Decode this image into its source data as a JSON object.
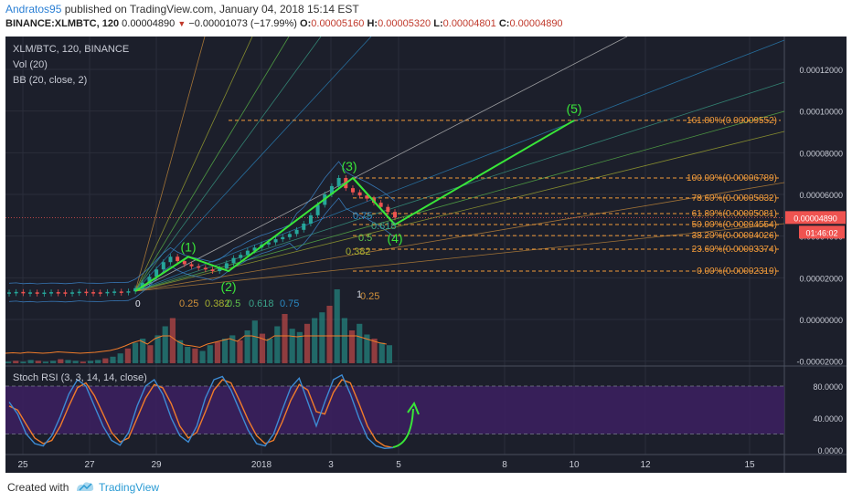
{
  "header": {
    "author": "Andratos95",
    "published": "published on TradingView.com, January 04, 2018 15:14 EST",
    "symbol": "BINANCE:XLMBTC, 120",
    "last": "0.00004890",
    "change": "−0.00001073 (−17.99%)",
    "o_label": "O:",
    "o": "0.00005160",
    "h_label": "H:",
    "h": "0.00005320",
    "l_label": "L:",
    "l": "0.00004801",
    "c_label": "C:",
    "c": "0.00004890"
  },
  "legend": {
    "pair": "XLM/BTC, 120, BINANCE",
    "vol": "Vol (20)",
    "bb": "BB (20, close, 2)",
    "stoch": "Stoch RSI (3, 3, 14, 14, close)"
  },
  "footer": {
    "created": "Created with",
    "brand": "TradingView"
  },
  "colors": {
    "bg": "#1c1f2b",
    "up": "#26a69a",
    "down": "#ef5350",
    "wave": "#39e639",
    "fib": "#f29b3a",
    "rsi_band": "#3b1f5e",
    "k": "#3d8bd4",
    "d": "#f07c2a"
  },
  "chart_data": {
    "type": "line",
    "price_axis": {
      "ticks": [
        "0.00012000",
        "0.00010000",
        "0.00008000",
        "0.00006000",
        "0.00004000",
        "0.00002000",
        "0.00000000",
        "-0.00002000"
      ],
      "current_price": "0.00004890",
      "countdown": "01:46:02",
      "ylim": [
        -2e-05,
        0.00013
      ]
    },
    "time_axis": {
      "ticks": [
        "25",
        "27",
        "29",
        "2018",
        "3",
        "5",
        "8",
        "10",
        "12",
        "15"
      ]
    },
    "elliott_wave": {
      "labels": [
        "(1)",
        "(2)",
        "(3)",
        "(4)",
        "(5)"
      ],
      "values": [
        3.01e-05,
        2.32e-05,
        6.79e-05,
        4.55e-05,
        9.55e-05
      ]
    },
    "fib_retracement": [
      {
        "label": "161.80%(0.00009552)",
        "value": 9.552e-05
      },
      {
        "label": "100.00%(0.00006789)",
        "value": 6.789e-05
      },
      {
        "label": "78.60%(0.00005832)",
        "value": 5.832e-05
      },
      {
        "label": "61.80%(0.00005081)",
        "value": 5.081e-05
      },
      {
        "label": "50.00%(0.00004554)",
        "value": 4.554e-05
      },
      {
        "label": "38.20%(0.00004026)",
        "value": 4.026e-05
      },
      {
        "label": "23.60%(0.00003374)",
        "value": 3.374e-05
      },
      {
        "label": "0.00%(0.00002319)",
        "value": 2.319e-05
      }
    ],
    "gann_fan_labels": [
      "0",
      "0.25",
      "0.382",
      "0.5",
      "0.618",
      "0.75",
      "1",
      "0.25",
      "0.382",
      "0.5",
      "0.618",
      "0.75",
      "0"
    ],
    "stoch_rsi": {
      "ticks": [
        "80.0000",
        "40.0000",
        "0.0000"
      ],
      "upper_band": 80,
      "lower_band": 20
    },
    "price_series": [
      1.3e-05,
      1.32e-05,
      1.28e-05,
      1.3e-05,
      1.27e-05,
      1.29e-05,
      1.31e-05,
      1.3e-05,
      1.28e-05,
      1.3e-05,
      1.33e-05,
      1.31e-05,
      1.3e-05,
      1.29e-05,
      1.32e-05,
      1.34e-05,
      1.33e-05,
      1.35e-05,
      1.5e-05,
      1.75e-05,
      2.05e-05,
      2.4e-05,
      2.75e-05,
      3.01e-05,
      2.8e-05,
      2.65e-05,
      2.55e-05,
      2.48e-05,
      2.4e-05,
      2.32e-05,
      2.45e-05,
      2.7e-05,
      2.95e-05,
      3.1e-05,
      3.3e-05,
      3.45e-05,
      3.6e-05,
      3.7e-05,
      3.85e-05,
      3.95e-05,
      4.1e-05,
      4.3e-05,
      4.6e-05,
      5e-05,
      5.5e-05,
      6e-05,
      6.4e-05,
      6.79e-05,
      6.3e-05,
      6.1e-05,
      5.95e-05,
      5.8e-05,
      5.6e-05,
      5.4e-05,
      5.16e-05,
      4.89e-05
    ],
    "rsi_k": [
      60,
      45,
      20,
      8,
      5,
      18,
      42,
      70,
      88,
      80,
      55,
      30,
      12,
      6,
      22,
      55,
      80,
      88,
      70,
      40,
      18,
      10,
      30,
      65,
      88,
      92,
      75,
      50,
      25,
      8,
      5,
      20,
      50,
      78,
      90,
      60,
      30,
      60,
      88,
      94,
      70,
      40,
      15,
      5,
      2,
      3
    ],
    "rsi_d": [
      55,
      50,
      32,
      15,
      8,
      12,
      30,
      55,
      78,
      84,
      68,
      45,
      22,
      10,
      15,
      40,
      65,
      82,
      78,
      58,
      30,
      15,
      22,
      48,
      75,
      88,
      84,
      62,
      38,
      18,
      8,
      12,
      35,
      62,
      82,
      75,
      48,
      45,
      72,
      88,
      84,
      58,
      30,
      12,
      5,
      3
    ],
    "volume": [
      2,
      3,
      2,
      4,
      3,
      2,
      3,
      5,
      4,
      3,
      2,
      3,
      4,
      6,
      8,
      12,
      18,
      25,
      30,
      22,
      34,
      45,
      55,
      28,
      20,
      18,
      15,
      22,
      26,
      30,
      34,
      28,
      40,
      52,
      36,
      30,
      45,
      60,
      42,
      38,
      48,
      55,
      62,
      70,
      90,
      55,
      40,
      48,
      35,
      30,
      25,
      22
    ]
  }
}
